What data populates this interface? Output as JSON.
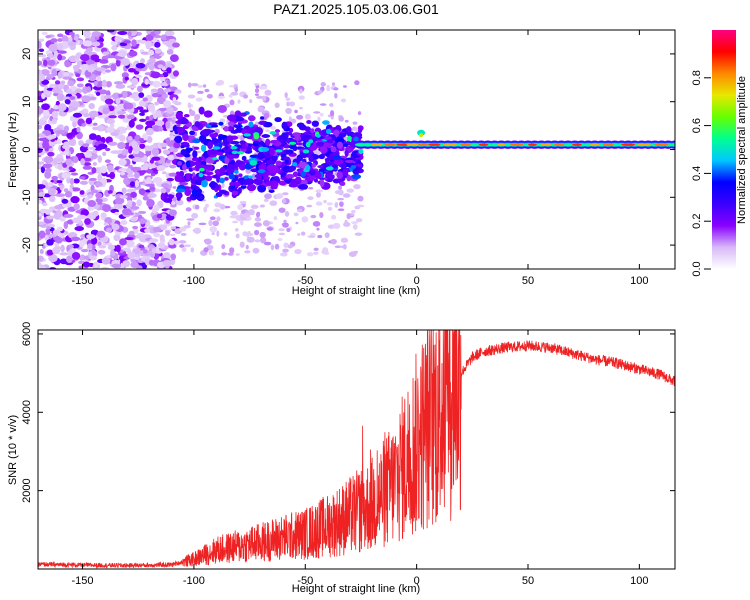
{
  "chart_data": [
    {
      "type": "heatmap",
      "title": "PAZ1.2025.105.03.06.G01",
      "xlabel": "Height of straight line (km)",
      "ylabel": "Frequency (Hz)",
      "xlim": [
        -170,
        116
      ],
      "ylim": [
        -25,
        25
      ],
      "xticks": [
        -150,
        -100,
        -50,
        0,
        50,
        100
      ],
      "yticks": [
        -20,
        -10,
        0,
        10,
        20
      ],
      "colorbar": {
        "label": "Normalized spectral amplitude",
        "range": [
          0.0,
          1.0
        ],
        "ticks": [
          0.0,
          0.2,
          0.4,
          0.6,
          0.8
        ],
        "colors": [
          "#ffffff",
          "#d8b8f8",
          "#8800ff",
          "#3a00ff",
          "#0000ff",
          "#00c8ff",
          "#00ff90",
          "#66ff00",
          "#e8e800",
          "#ff8800",
          "#ff0000",
          "#ff0080"
        ]
      },
      "features": [
        {
          "name": "noise-region",
          "x_range": [
            -170,
            -108
          ],
          "y_range": [
            -25,
            25
          ],
          "amplitude": 0.08
        },
        {
          "name": "transition-region",
          "x_range": [
            -108,
            -25
          ],
          "y_range": [
            -12,
            10
          ],
          "amplitude": 0.25
        },
        {
          "name": "signal-band",
          "x_range": [
            -25,
            116
          ],
          "y_range": [
            0,
            2
          ],
          "amplitude": 0.55,
          "peak_amplitude": 0.9
        }
      ]
    },
    {
      "type": "line",
      "xlabel": "Height of straight line (km)",
      "ylabel": "SNR (10 * v/v)",
      "xlim": [
        -170,
        116
      ],
      "ylim": [
        0,
        6100
      ],
      "xticks": [
        -150,
        -100,
        -50,
        0,
        50,
        100
      ],
      "yticks": [
        2000,
        4000,
        6000
      ],
      "color": "#ee2222",
      "series": [
        {
          "name": "SNR",
          "x": [
            -170,
            -150,
            -130,
            -110,
            -100,
            -90,
            -80,
            -70,
            -60,
            -50,
            -40,
            -30,
            -20,
            -15,
            -10,
            -5,
            0,
            5,
            10,
            15,
            20,
            25,
            30,
            40,
            50,
            60,
            70,
            80,
            90,
            100,
            110,
            115
          ],
          "y": [
            120,
            100,
            90,
            110,
            250,
            480,
            580,
            680,
            800,
            900,
            1100,
            1350,
            1650,
            1900,
            2200,
            2700,
            3200,
            3700,
            4100,
            4600,
            5000,
            5400,
            5550,
            5650,
            5700,
            5650,
            5500,
            5350,
            5250,
            5100,
            4950,
            4800
          ]
        }
      ]
    }
  ]
}
